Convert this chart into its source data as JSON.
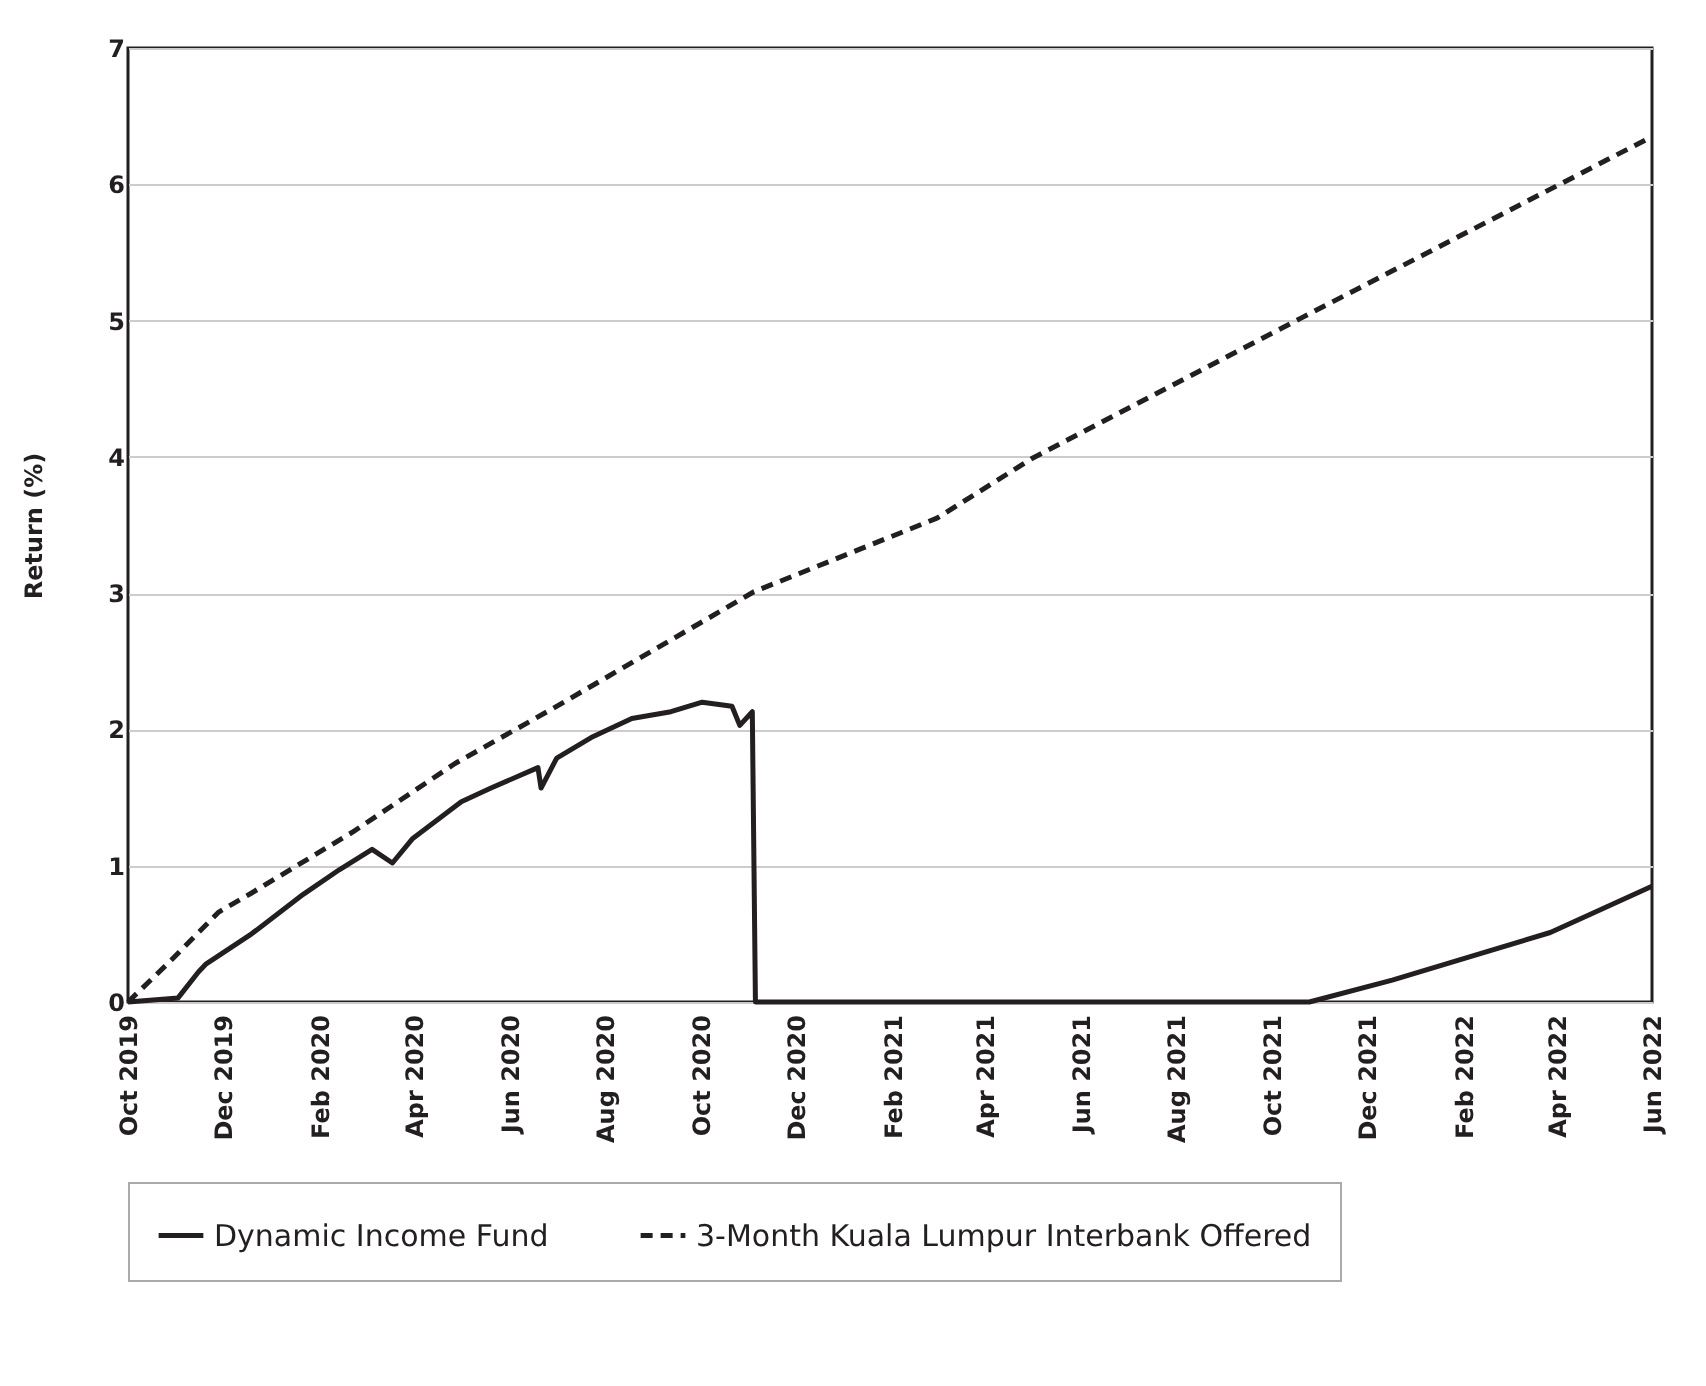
{
  "chart_data": {
    "type": "line",
    "ylabel": "Return (%)",
    "xlim": [
      "2019-10-01",
      "2022-06-01"
    ],
    "ylim": [
      0,
      7
    ],
    "yticks": [
      0,
      1,
      2,
      3,
      4,
      5,
      6,
      7
    ],
    "xticks": [
      {
        "value": "2019-10",
        "label": "Oct 2019"
      },
      {
        "value": "2019-12",
        "label": "Dec 2019"
      },
      {
        "value": "2020-02",
        "label": "Feb 2020"
      },
      {
        "value": "2020-04",
        "label": "Apr 2020"
      },
      {
        "value": "2020-06",
        "label": "Jun 2020"
      },
      {
        "value": "2020-08",
        "label": "Aug 2020"
      },
      {
        "value": "2020-10",
        "label": "Oct 2020"
      },
      {
        "value": "2020-12",
        "label": "Dec 2020"
      },
      {
        "value": "2021-02",
        "label": "Feb 2021"
      },
      {
        "value": "2021-04",
        "label": "Apr 2021"
      },
      {
        "value": "2021-06",
        "label": "Jun 2021"
      },
      {
        "value": "2021-08",
        "label": "Aug 2021"
      },
      {
        "value": "2021-10",
        "label": "Oct 2021"
      },
      {
        "value": "2021-12",
        "label": "Dec 2021"
      },
      {
        "value": "2022-02",
        "label": "Feb 2022"
      },
      {
        "value": "2022-04",
        "label": "Apr 2022"
      },
      {
        "value": "2022-06",
        "label": "Jun 2022"
      }
    ],
    "grid": "y",
    "legend": "bottom",
    "marker": "none",
    "series": [
      {
        "name": "Dynamic Income Fund",
        "color": "#231f20",
        "line_style": "solid",
        "x": [
          "2019-10-01",
          "2019-11-02",
          "2019-11-15",
          "2019-11-20",
          "2019-12-19",
          "2020-01-21",
          "2020-02-13",
          "2020-03-05",
          "2020-03-18",
          "2020-03-31",
          "2020-05-01",
          "2020-05-20",
          "2020-06-19",
          "2020-06-21",
          "2020-07-01",
          "2020-07-23",
          "2020-08-18",
          "2020-09-12",
          "2020-10-02",
          "2020-10-21",
          "2020-10-26",
          "2020-11-03",
          "2020-11-05",
          "2021-10-25",
          "2021-12-17",
          "2022-02-07",
          "2022-03-28",
          "2022-06-01"
        ],
        "values": [
          0,
          0.03,
          0.22,
          0.28,
          0.5,
          0.79,
          0.97,
          1.12,
          1.02,
          1.2,
          1.47,
          1.57,
          1.72,
          1.57,
          1.79,
          1.94,
          2.08,
          2.13,
          2.2,
          2.17,
          2.03,
          2.13,
          0,
          0,
          0.16,
          0.34,
          0.51,
          0.85
        ]
      },
      {
        "name": "3-Month Kuala Lumpur Interbank Offered",
        "color": "#231f20",
        "line_style": "dashed",
        "x": [
          "2019-10-01",
          "2019-10-28",
          "2019-11-28",
          "2019-12-19",
          "2020-02-22",
          "2020-04-27",
          "2020-06-28",
          "2020-11-04",
          "2021-03-01",
          "2021-05-01",
          "2021-10-20",
          "2022-06-01"
        ],
        "values": [
          0,
          0.3,
          0.66,
          0.8,
          1.25,
          1.75,
          2.15,
          3.01,
          3.55,
          3.99,
          5.02,
          6.35
        ]
      }
    ]
  }
}
